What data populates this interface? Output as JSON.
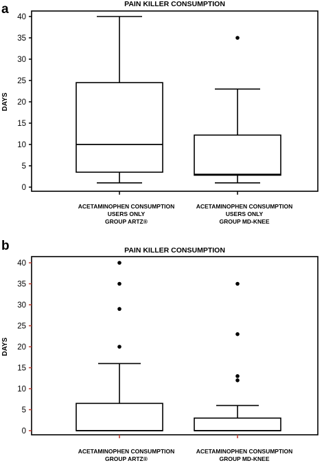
{
  "chart_data": [
    {
      "type": "boxplot",
      "panel_label": "a",
      "title": "PAIN KILLER CONSUMPTION",
      "ylabel": "DAYS",
      "ylim": [
        0,
        40
      ],
      "yticks": [
        0,
        5,
        10,
        15,
        20,
        25,
        30,
        35,
        40
      ],
      "tick_color": "#000000",
      "categories": [
        [
          "ACETAMINOPHEN CONSUMPTION",
          "USERS ONLY",
          "GROUP ARTZ®"
        ],
        [
          "ACETAMINOPHEN CONSUMPTION",
          "USERS ONLY",
          "GROUP MD-KNEE"
        ]
      ],
      "boxes": [
        {
          "whisker_low": 1,
          "q1": 3.5,
          "median": 10,
          "q3": 24.5,
          "whisker_high": 40,
          "outliers": []
        },
        {
          "whisker_low": 1,
          "q1": 2.8,
          "median": 3,
          "q3": 12.2,
          "whisker_high": 23,
          "outliers": [
            35
          ]
        }
      ]
    },
    {
      "type": "boxplot",
      "panel_label": "b",
      "title": "PAIN KILLER CONSUMPTION",
      "ylabel": "DAYS",
      "ylim": [
        0,
        40
      ],
      "yticks": [
        0,
        5,
        10,
        15,
        20,
        25,
        30,
        35,
        40
      ],
      "tick_color": "#c0392b",
      "categories": [
        [
          "ACETAMINOPHEN CONSUMPTION",
          "GROUP ARTZ®"
        ],
        [
          "ACETAMINOPHEN CONSUMPTION",
          "GROUP MD-KNEE"
        ]
      ],
      "boxes": [
        {
          "whisker_low": 0,
          "q1": 0,
          "median": 0,
          "q3": 6.5,
          "whisker_high": 16,
          "outliers": [
            20,
            29,
            35,
            40
          ]
        },
        {
          "whisker_low": 0,
          "q1": 0,
          "median": 0,
          "q3": 3,
          "whisker_high": 6,
          "outliers": [
            12,
            13,
            23,
            35
          ]
        }
      ]
    }
  ]
}
